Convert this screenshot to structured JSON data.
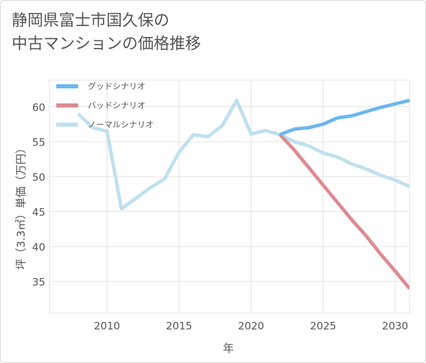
{
  "title": {
    "line1": "静岡県富士市国久保の",
    "line2": "中古マンションの価格推移"
  },
  "chart_data": {
    "type": "line",
    "title": "静岡県富士市国久保の中古マンションの価格推移",
    "xlabel": "年",
    "ylabel": "坪（3.3㎡）単価（万円）",
    "xlim": [
      2006,
      2031
    ],
    "ylim": [
      30.5,
      63.8
    ],
    "x_ticks": [
      2010,
      2015,
      2020,
      2025,
      2030
    ],
    "y_ticks": [
      35,
      40,
      45,
      50,
      55,
      60
    ],
    "grid": true,
    "legend_position": "top-left",
    "series": [
      {
        "name": "グッドシナリオ",
        "color": "#6bb7ee",
        "x": [
          2022,
          2023,
          2024,
          2025,
          2026,
          2027,
          2028,
          2029,
          2030,
          2031
        ],
        "values": [
          56.0,
          56.8,
          57.0,
          57.5,
          58.4,
          58.7,
          59.3,
          59.9,
          60.4,
          60.9
        ]
      },
      {
        "name": "バッドシナリオ",
        "color": "#dd8a92",
        "x": [
          2022,
          2023,
          2024,
          2025,
          2026,
          2027,
          2028,
          2029,
          2030,
          2031
        ],
        "values": [
          56.0,
          53.8,
          51.3,
          48.8,
          46.3,
          43.8,
          41.5,
          38.9,
          36.5,
          34.0
        ]
      },
      {
        "name": "ノーマルシナリオ",
        "color": "#bfe0ef",
        "x": [
          2008,
          2009,
          2010,
          2011,
          2012,
          2013,
          2014,
          2015,
          2016,
          2017,
          2018,
          2019,
          2020,
          2021,
          2022,
          2023,
          2024,
          2025,
          2026,
          2027,
          2028,
          2029,
          2030,
          2031
        ],
        "values": [
          59.0,
          57.0,
          56.5,
          45.4,
          46.9,
          48.4,
          49.7,
          53.5,
          56.0,
          55.7,
          57.3,
          60.9,
          56.1,
          56.6,
          56.0,
          55.0,
          54.4,
          53.4,
          52.8,
          51.8,
          51.1,
          50.2,
          49.5,
          48.6
        ]
      }
    ]
  }
}
